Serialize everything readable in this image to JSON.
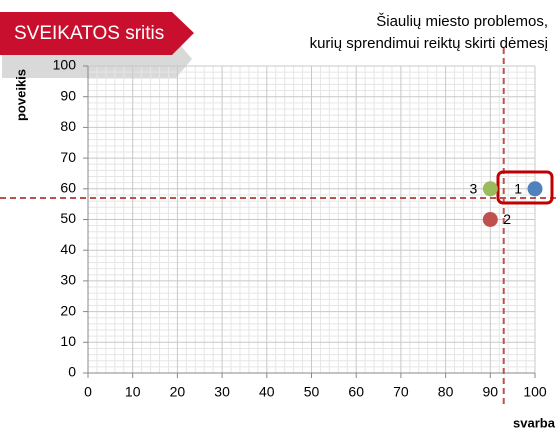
{
  "chart_data": {
    "type": "scatter",
    "title": "SVEIKATOS sritis",
    "annotation": [
      "Šiaulių miesto problemos,",
      "kurių sprendimui reiktų skirti dėmesį"
    ],
    "x_label": "svarba",
    "y_label": "poveikis",
    "series": [
      {
        "name": "1",
        "color": "#4f81bd",
        "x": [
          100
        ],
        "values": [
          60
        ]
      },
      {
        "name": "2",
        "color": "#c0504d",
        "x": [
          90
        ],
        "values": [
          50
        ]
      },
      {
        "name": "3",
        "color": "#9bbb59",
        "x": [
          90
        ],
        "values": [
          60
        ]
      }
    ],
    "reference_lines": {
      "x": 93,
      "y": 57,
      "color": "#c0504d"
    },
    "xlim": [
      0,
      100
    ],
    "ylim": [
      0,
      100
    ],
    "xticks": [
      0,
      10,
      20,
      30,
      40,
      50,
      60,
      70,
      80,
      90,
      100
    ],
    "yticks": [
      0,
      10,
      20,
      30,
      40,
      50,
      60,
      70,
      80,
      90,
      100
    ],
    "grid": true,
    "minor_divisions": 5
  }
}
